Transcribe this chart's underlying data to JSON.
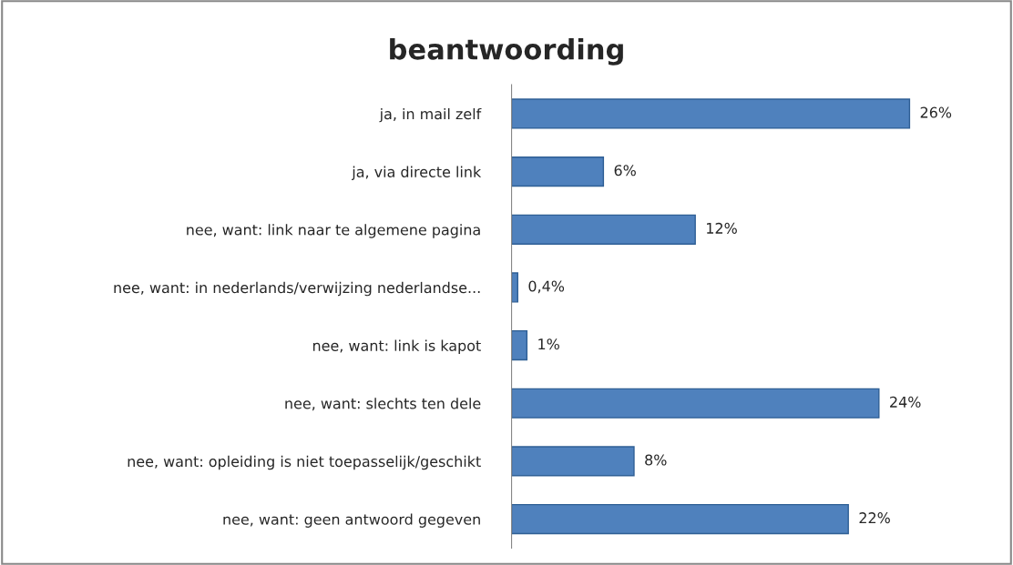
{
  "chart_data": {
    "type": "bar",
    "orientation": "horizontal",
    "title": "beantwoording",
    "categories": [
      "ja, in mail zelf",
      "ja, via directe link",
      "nee, want: link naar te algemene pagina",
      "nee, want: in nederlands/verwijzing nederlandse...",
      "nee, want: link is kapot",
      "nee, want: slechts ten dele",
      "nee, want: opleiding is niet toepasselijk/geschikt",
      "nee, want: geen antwoord gegeven"
    ],
    "values": [
      26,
      6,
      12,
      0.4,
      1,
      24,
      8,
      22
    ],
    "value_labels": [
      "26%",
      "6%",
      "12%",
      "0,4%",
      "1%",
      "24%",
      "8%",
      "22%"
    ],
    "color": "#4f81bd",
    "grid": false,
    "legend": false,
    "tick_labels": "y"
  }
}
